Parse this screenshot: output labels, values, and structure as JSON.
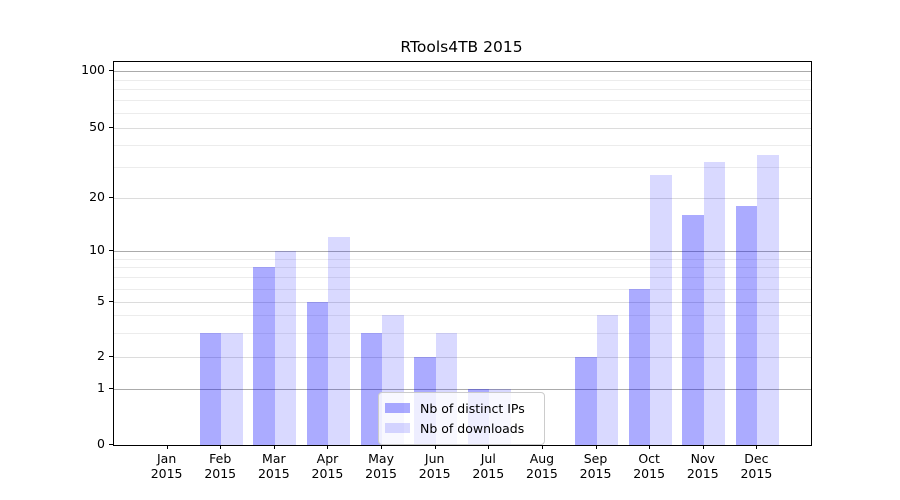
{
  "title": "RTools4TB 2015",
  "legend": {
    "items": [
      {
        "label": "Nb of distinct IPs",
        "color": "rgba(0,0,255,0.33)"
      },
      {
        "label": "Nb of downloads",
        "color": "rgba(0,0,255,0.15)"
      }
    ],
    "position": "lower center"
  },
  "axes": {
    "y_tick_labels": [
      "100",
      "50",
      "20",
      "10",
      "5",
      "2",
      "1",
      "0"
    ],
    "x_tick_year": "2015"
  },
  "chart_data": {
    "type": "bar",
    "title": "RTools4TB 2015",
    "categories": [
      "Jan 2015",
      "Feb 2015",
      "Mar 2015",
      "Apr 2015",
      "May 2015",
      "Jun 2015",
      "Jul 2015",
      "Aug 2015",
      "Sep 2015",
      "Oct 2015",
      "Nov 2015",
      "Dec 2015"
    ],
    "x_months": [
      "Jan",
      "Feb",
      "Mar",
      "Apr",
      "May",
      "Jun",
      "Jul",
      "Aug",
      "Sep",
      "Oct",
      "Nov",
      "Dec"
    ],
    "x_year": "2015",
    "series": [
      {
        "name": "Nb of distinct IPs",
        "color": "rgba(0,0,255,0.33)",
        "values": [
          0,
          3,
          8,
          5,
          3,
          2,
          1,
          0,
          2,
          6,
          16,
          18
        ]
      },
      {
        "name": "Nb of downloads",
        "color": "rgba(0,0,255,0.15)",
        "values": [
          0,
          3,
          10,
          12,
          4,
          3,
          1,
          0,
          4,
          27,
          32,
          35
        ]
      }
    ],
    "yscale": "symlog",
    "y_ticks": [
      0,
      1,
      2,
      5,
      10,
      20,
      50,
      100
    ],
    "y_minor_gridlines": [
      3,
      4,
      6,
      7,
      8,
      9,
      30,
      40,
      60,
      70,
      80,
      90
    ],
    "ylim": [
      0,
      112
    ],
    "xlabel": "",
    "ylabel": "",
    "grid": "horizontal, major + minor",
    "legend_position": "lower center"
  }
}
